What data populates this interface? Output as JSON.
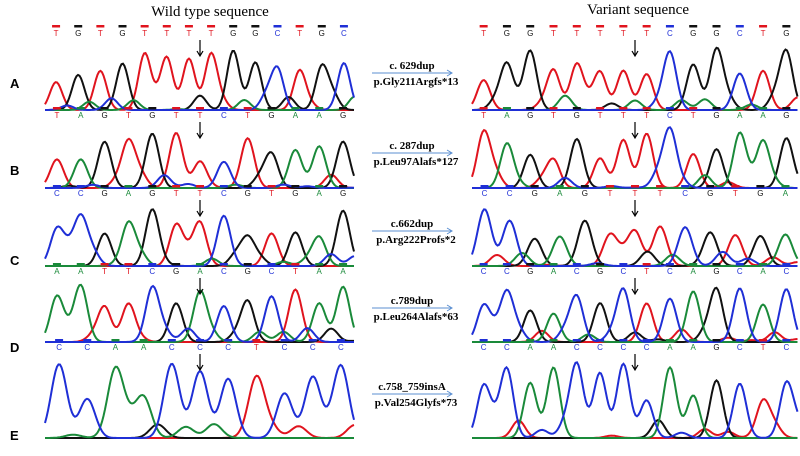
{
  "title_left": "Wild type sequence",
  "title_right": "Variant sequence",
  "rows": [
    {
      "label": "A",
      "wild_type": [
        "T",
        "G",
        "T",
        "G",
        "T",
        "T",
        "T",
        "T",
        "G",
        "G",
        "C",
        "T",
        "G",
        "C"
      ],
      "variant": [
        "T",
        "G",
        "G",
        "T",
        "T",
        "T",
        "T",
        "T",
        "C",
        "G",
        "G",
        "C",
        "T",
        "G"
      ],
      "mutation": "c. 629dup",
      "protein": "p.Gly211Argfs*13"
    },
    {
      "label": "B",
      "wild_type": [
        "T",
        "A",
        "G",
        "T",
        "G",
        "T",
        "T",
        "C",
        "T",
        "G",
        "A",
        "A",
        "G"
      ],
      "variant": [
        "T",
        "A",
        "G",
        "T",
        "G",
        "T",
        "T",
        "T",
        "C",
        "T",
        "G",
        "A",
        "A",
        "G"
      ],
      "mutation": "c. 287dup",
      "protein": "p.Leu97Alafs*127"
    },
    {
      "label": "C",
      "wild_type": [
        "C",
        "C",
        "G",
        "A",
        "G",
        "T",
        "T",
        "C",
        "G",
        "T",
        "G",
        "A",
        "G"
      ],
      "variant": [
        "C",
        "C",
        "G",
        "A",
        "G",
        "T",
        "T",
        "T",
        "C",
        "G",
        "T",
        "G",
        "A"
      ],
      "mutation": "c.662dup",
      "protein": "p.Arg222Profs*2"
    },
    {
      "label": "D",
      "wild_type": [
        "A",
        "A",
        "T",
        "T",
        "C",
        "G",
        "A",
        "C",
        "G",
        "C",
        "T",
        "A",
        "A"
      ],
      "variant": [
        "C",
        "C",
        "G",
        "A",
        "C",
        "G",
        "C",
        "T",
        "C",
        "A",
        "G",
        "C",
        "A",
        "C"
      ],
      "mutation": "c.789dup",
      "protein": "p.Leu264Alafs*63"
    },
    {
      "label": "E",
      "wild_type": [
        "C",
        "C",
        "A",
        "A",
        "C",
        "C",
        "C",
        "T",
        "C",
        "C",
        "C"
      ],
      "variant": [
        "C",
        "C",
        "A",
        "A",
        "C",
        "C",
        "C",
        "C",
        "A",
        "A",
        "G",
        "C",
        "T",
        "C"
      ],
      "mutation": "c.758_759insA",
      "protein": "p.Val254Glyfs*73"
    }
  ]
}
